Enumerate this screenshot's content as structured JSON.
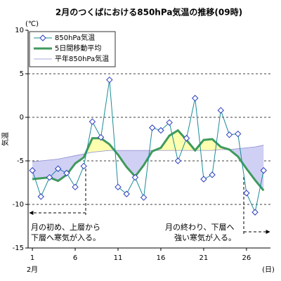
{
  "chart_data": {
    "type": "line",
    "title": "2月のつくばにおける850hPa気温の推移(09時)",
    "y_label": "気温",
    "y_unit": "(℃)",
    "x_unit": "(日)",
    "x_month": "2月",
    "x": [
      1,
      2,
      3,
      4,
      5,
      6,
      7,
      8,
      9,
      10,
      11,
      12,
      13,
      14,
      15,
      16,
      17,
      18,
      19,
      20,
      21,
      22,
      23,
      24,
      25,
      26,
      27,
      28
    ],
    "xlim": [
      0.5,
      28.8
    ],
    "xticks": [
      1,
      6,
      11,
      16,
      21,
      26
    ],
    "ylim": [
      -15,
      10
    ],
    "yticks": [
      -15,
      -10,
      -5,
      0,
      5,
      10
    ],
    "grid": true,
    "legend": "upper left",
    "fill_above": "#ffffb0",
    "fill_below": "#d0d0f4",
    "series": [
      {
        "name": "850hPa気温",
        "color": "#1a8c96",
        "marker_color": "#2a3cc0",
        "values": [
          -6.1,
          -9.1,
          -6.9,
          -5.9,
          -6.4,
          -8.0,
          -5.6,
          -0.5,
          -2.3,
          4.3,
          -8.0,
          -8.8,
          -6.9,
          -9.2,
          -1.2,
          -1.5,
          -0.6,
          -5.0,
          -2.4,
          2.2,
          -7.1,
          -6.6,
          0.8,
          -2.0,
          -1.9,
          -8.7,
          -10.9,
          -6.1
        ]
      },
      {
        "name": "5日間移動平均",
        "color": "#3f9a5c",
        "values": [
          -7.1,
          -7.0,
          -6.9,
          -7.3,
          -6.6,
          -5.3,
          -4.6,
          -2.4,
          -2.4,
          -3.1,
          -4.3,
          -5.7,
          -6.8,
          -5.5,
          -3.9,
          -3.5,
          -2.1,
          -1.5,
          -2.6,
          -3.8,
          -2.6,
          -2.5,
          -3.4,
          -3.7,
          -4.5,
          -5.9,
          -7.2,
          -8.4
        ]
      },
      {
        "name": "平年850hPa気温",
        "color": "#8a8ad0",
        "values": [
          -5.1,
          -5.0,
          -4.9,
          -4.8,
          -4.6,
          -4.4,
          -4.2,
          -4.0,
          -3.9,
          -3.8,
          -3.8,
          -3.8,
          -3.8,
          -3.8,
          -3.8,
          -3.8,
          -3.8,
          -3.8,
          -3.8,
          -3.8,
          -3.8,
          -3.8,
          -3.7,
          -3.7,
          -3.6,
          -3.5,
          -3.4,
          -3.2
        ]
      }
    ],
    "annotations": [
      [
        "月の初め、上層から",
        "下層へ寒気が入る。"
      ],
      [
        "月の終わり、下層へ",
        "強い寒気が入る。"
      ]
    ]
  }
}
